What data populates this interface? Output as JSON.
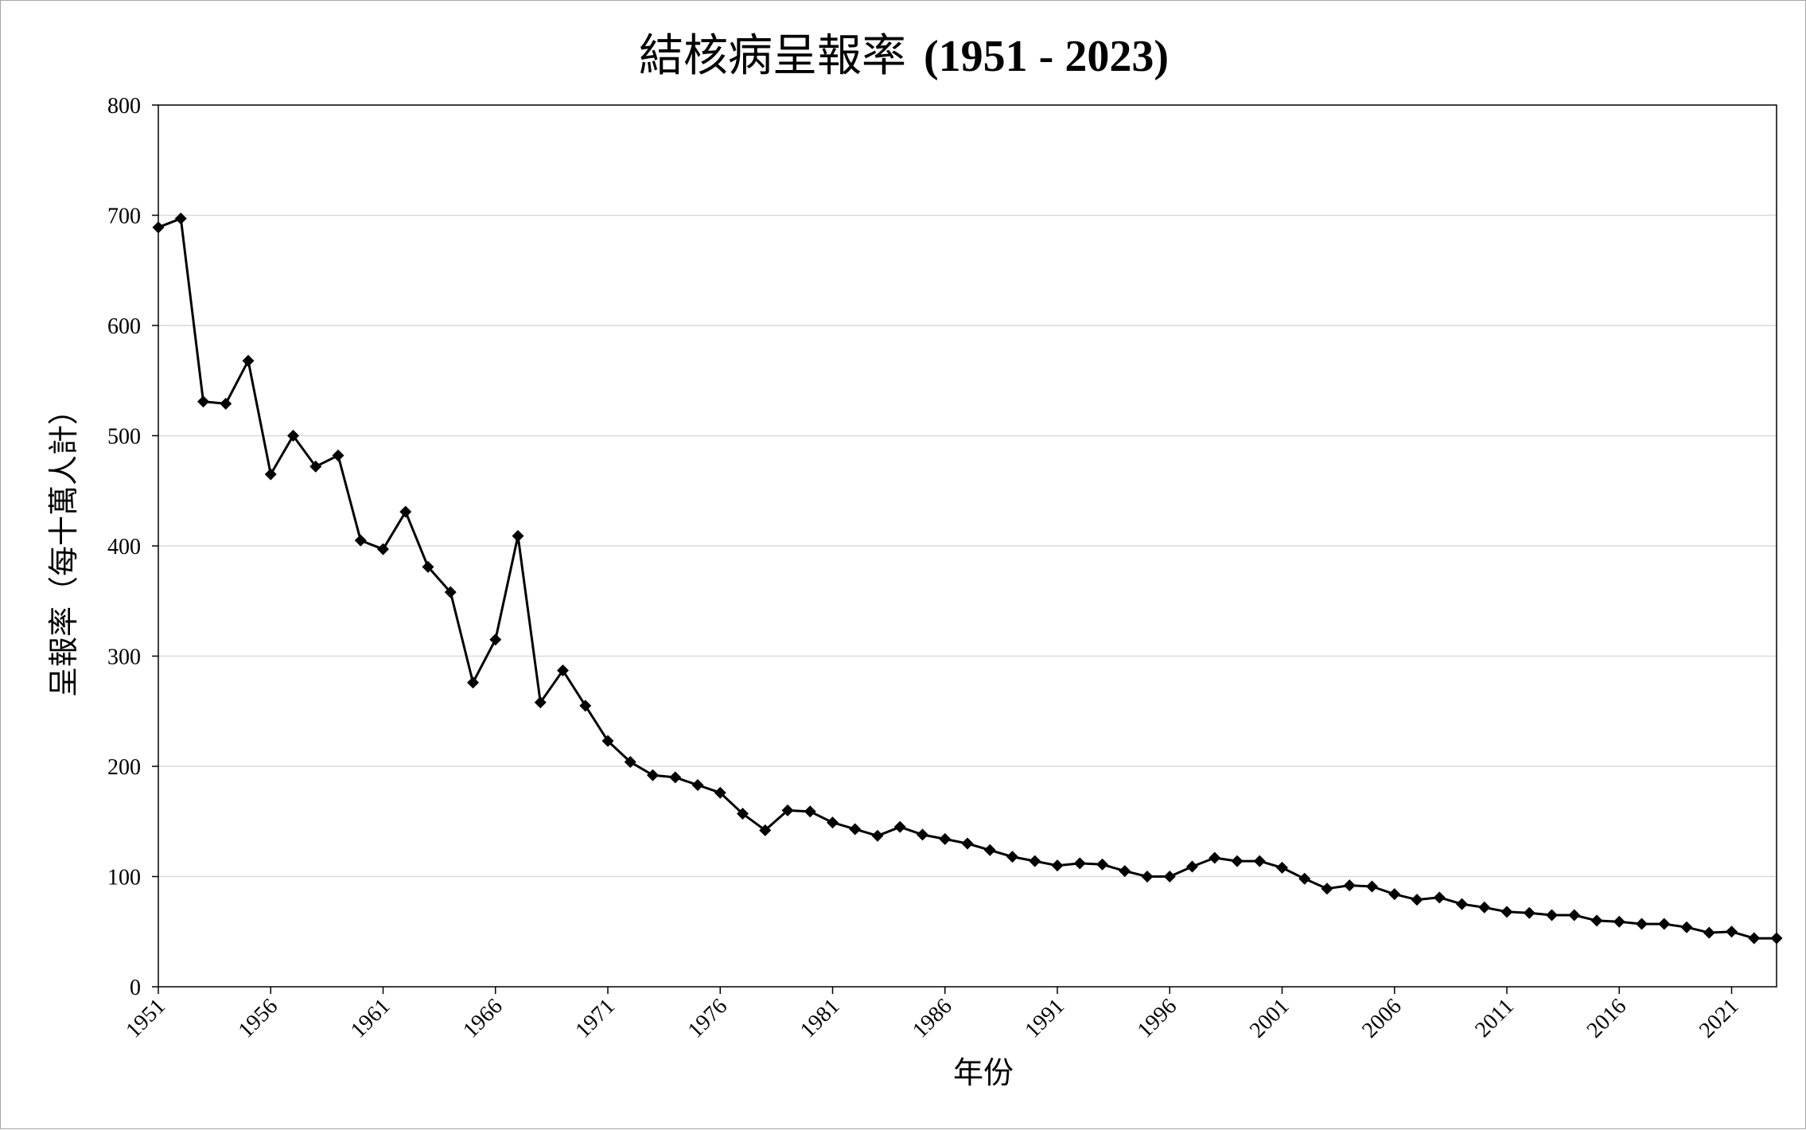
{
  "chart_data": {
    "type": "line",
    "title_cn": "結核病呈報率",
    "title_range": "(1951 - 2023)",
    "xlabel": "年份",
    "ylabel": "呈報率（每十萬人計）",
    "ylim": [
      0,
      800
    ],
    "y_ticks": [
      "0",
      "100",
      "200",
      "300",
      "400",
      "500",
      "600",
      "700",
      "800"
    ],
    "x_tick_labels": [
      "1951",
      "1956",
      "1961",
      "1966",
      "1971",
      "1976",
      "1981",
      "1986",
      "1991",
      "1996",
      "2001",
      "2006",
      "2011",
      "2016",
      "2021"
    ],
    "grid": true,
    "marker": "diamond",
    "line_color": "#000000",
    "x": [
      1951,
      1952,
      1953,
      1954,
      1955,
      1956,
      1957,
      1958,
      1959,
      1960,
      1961,
      1962,
      1963,
      1964,
      1965,
      1966,
      1967,
      1968,
      1969,
      1970,
      1971,
      1972,
      1973,
      1974,
      1975,
      1976,
      1977,
      1978,
      1979,
      1980,
      1981,
      1982,
      1983,
      1984,
      1985,
      1986,
      1987,
      1988,
      1989,
      1990,
      1991,
      1992,
      1993,
      1994,
      1995,
      1996,
      1997,
      1998,
      1999,
      2000,
      2001,
      2002,
      2003,
      2004,
      2005,
      2006,
      2007,
      2008,
      2009,
      2010,
      2011,
      2012,
      2013,
      2014,
      2015,
      2016,
      2017,
      2018,
      2019,
      2020,
      2021,
      2022,
      2023
    ],
    "values": [
      689,
      697,
      531,
      529,
      568,
      465,
      500,
      472,
      482,
      405,
      397,
      431,
      381,
      358,
      276,
      315,
      409,
      258,
      287,
      255,
      223,
      204,
      192,
      190,
      183,
      176,
      157,
      142,
      160,
      159,
      149,
      143,
      137,
      145,
      138,
      134,
      130,
      124,
      118,
      114,
      110,
      112,
      111,
      105,
      100,
      100,
      109,
      117,
      114,
      114,
      108,
      98,
      89,
      92,
      91,
      84,
      79,
      81,
      75,
      72,
      68,
      67,
      65,
      65,
      60,
      59,
      57,
      57,
      54,
      49,
      50,
      44,
      44
    ]
  }
}
